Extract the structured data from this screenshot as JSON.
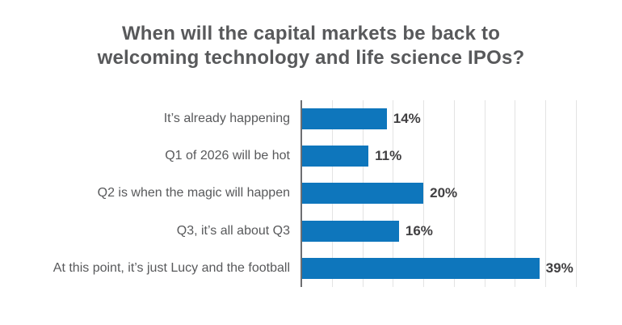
{
  "header": {
    "title_line1": "When will the capital markets be back to",
    "title_line2": "welcoming technology and life science IPOs?"
  },
  "chart_data": {
    "type": "bar",
    "orientation": "horizontal",
    "title": "When will the capital markets be back to welcoming technology and life science IPOs?",
    "categories": [
      "It’s already happening",
      "Q1 of 2026 will be hot",
      "Q2 is when the magic will happen",
      "Q3, it’s all about Q3",
      "At this point, it’s just Lucy and the football"
    ],
    "values": [
      14,
      11,
      20,
      16,
      39
    ],
    "value_labels": [
      "14%",
      "11%",
      "20%",
      "16%",
      "39%"
    ],
    "xlabel": "",
    "ylabel": "",
    "xlim": [
      0,
      45
    ],
    "gridline_step": 5,
    "grid": true,
    "legend": false,
    "colors": {
      "bar": "#0e76bc",
      "title": "#58595b",
      "category_label": "#58595b",
      "value_label": "#414042",
      "axis": "#6d6e71",
      "gridline": "#e3e3e3",
      "background": "#ffffff"
    }
  }
}
